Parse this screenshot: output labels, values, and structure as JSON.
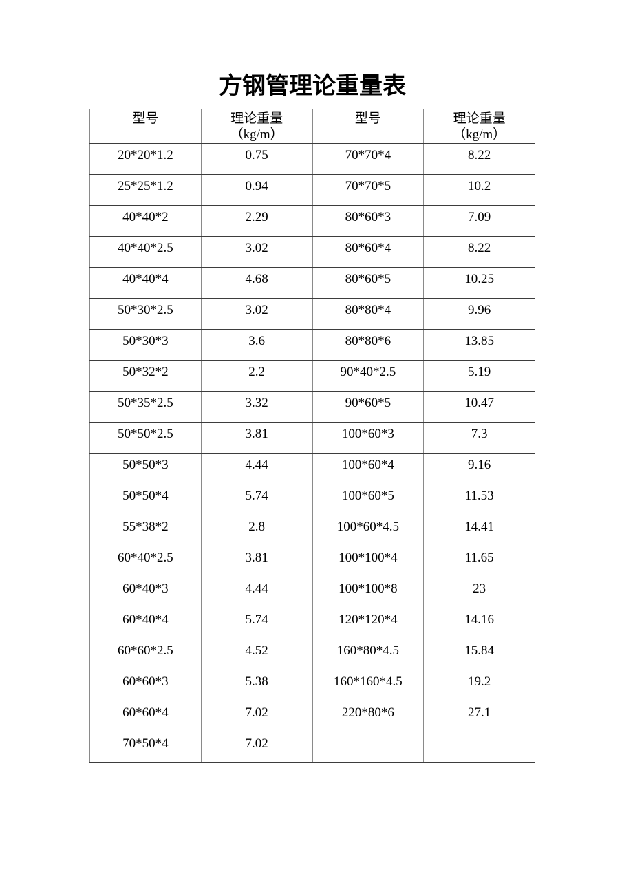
{
  "page": {
    "title": "方钢管理论重量表"
  },
  "table": {
    "headers": [
      {
        "label": "型号",
        "sub": ""
      },
      {
        "label": "理论重量",
        "sub": "（kg/m）"
      },
      {
        "label": "型号",
        "sub": ""
      },
      {
        "label": "理论重量",
        "sub": "（kg/m）"
      }
    ],
    "rows": [
      [
        "20*20*1.2",
        "0.75",
        "70*70*4",
        "8.22"
      ],
      [
        "25*25*1.2",
        "0.94",
        "70*70*5",
        "10.2"
      ],
      [
        "40*40*2",
        "2.29",
        "80*60*3",
        "7.09"
      ],
      [
        "40*40*2.5",
        "3.02",
        "80*60*4",
        "8.22"
      ],
      [
        "40*40*4",
        "4.68",
        "80*60*5",
        "10.25"
      ],
      [
        "50*30*2.5",
        "3.02",
        "80*80*4",
        "9.96"
      ],
      [
        "50*30*3",
        "3.6",
        "80*80*6",
        "13.85"
      ],
      [
        "50*32*2",
        "2.2",
        "90*40*2.5",
        "5.19"
      ],
      [
        "50*35*2.5",
        "3.32",
        "90*60*5",
        "10.47"
      ],
      [
        "50*50*2.5",
        "3.81",
        "100*60*3",
        "7.3"
      ],
      [
        "50*50*3",
        "4.44",
        "100*60*4",
        "9.16"
      ],
      [
        "50*50*4",
        "5.74",
        "100*60*5",
        "11.53"
      ],
      [
        "55*38*2",
        "2.8",
        "100*60*4.5",
        "14.41"
      ],
      [
        "60*40*2.5",
        "3.81",
        "100*100*4",
        "11.65"
      ],
      [
        "60*40*3",
        "4.44",
        "100*100*8",
        "23"
      ],
      [
        "60*40*4",
        "5.74",
        "120*120*4",
        "14.16"
      ],
      [
        "60*60*2.5",
        "4.52",
        "160*80*4.5",
        "15.84"
      ],
      [
        "60*60*3",
        "5.38",
        "160*160*4.5",
        "19.2"
      ],
      [
        "60*60*4",
        "7.02",
        "220*80*6",
        "27.1"
      ],
      [
        "70*50*4",
        "7.02",
        "",
        ""
      ]
    ]
  },
  "colors": {
    "background": "#ffffff",
    "text": "#000000",
    "border_horizontal": "#3d3d3d",
    "border_vertical": "#8a8a8a"
  }
}
